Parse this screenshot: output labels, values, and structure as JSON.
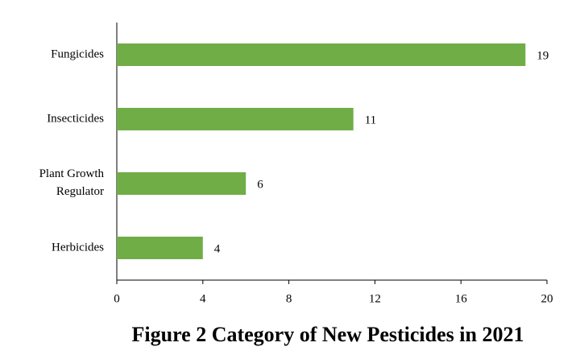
{
  "chart_data": {
    "type": "bar",
    "orientation": "horizontal",
    "title": "Figure 2 Category of New Pesticides in 2021",
    "categories": [
      "Fungicides",
      "Insecticides",
      "Plant Growth Regulator",
      "Herbicides"
    ],
    "values": [
      19,
      11,
      6,
      4
    ],
    "color": "#70ad47",
    "xlim": [
      0,
      20
    ],
    "xticks": [
      0,
      4,
      8,
      12,
      16,
      20
    ],
    "grid": false
  }
}
